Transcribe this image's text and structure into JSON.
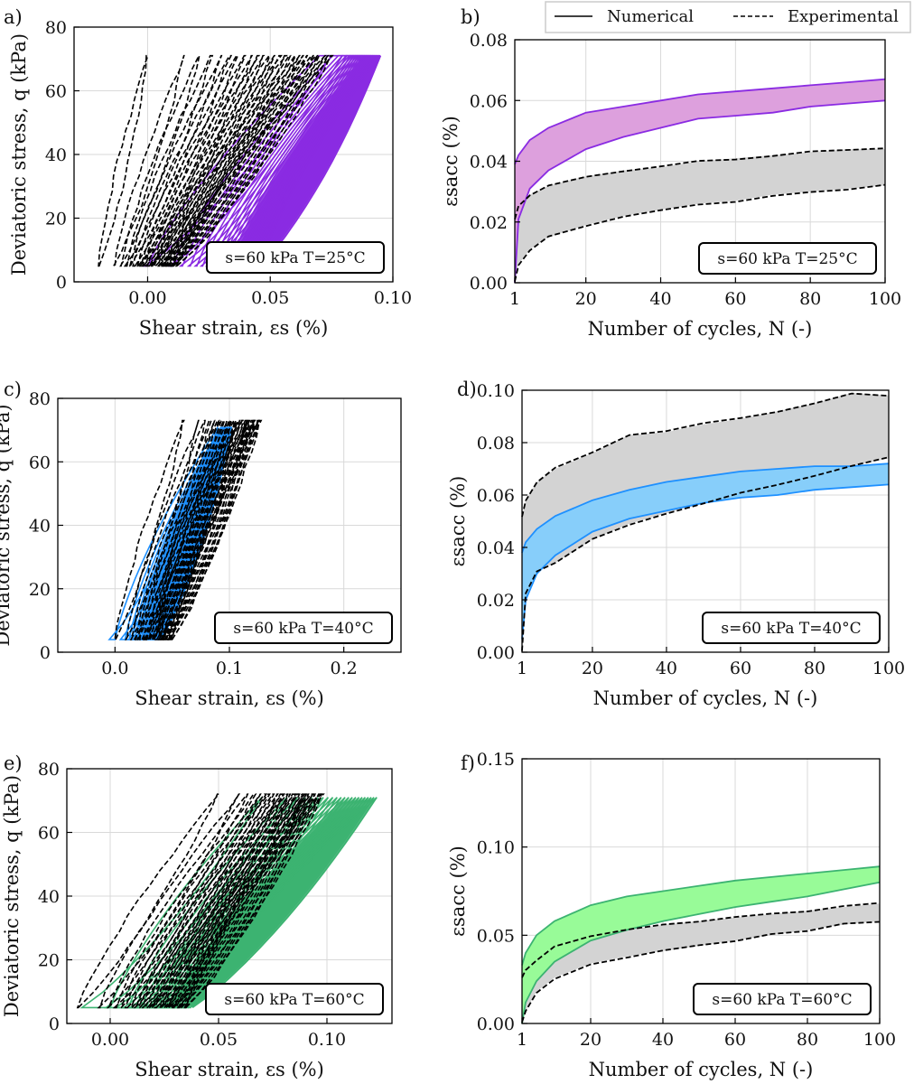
{
  "legend": {
    "numerical": "Numerical",
    "experimental": "Experimental"
  },
  "chart_data": [
    {
      "id": "a",
      "panel_label": "a)",
      "type": "line",
      "title": "",
      "xlabel": "Shear strain, εs (%)",
      "ylabel": "Deviatoric stress, q (kPa)",
      "xlim": [
        -0.03,
        0.1
      ],
      "ylim": [
        0,
        80
      ],
      "xticks": [
        0.0,
        0.05,
        0.1
      ],
      "xtick_labels": [
        "0.00",
        "0.05",
        "0.10"
      ],
      "yticks": [
        0,
        20,
        40,
        60,
        80
      ],
      "ytick_labels": [
        "0",
        "20",
        "40",
        "60",
        "80"
      ],
      "annotation": "s=60 kPa T=25°C",
      "color": "#8a2be2",
      "experimental_loops": {
        "q_range": [
          5,
          71
        ],
        "first_loop": {
          "load_x": [
            -0.02,
            0.0
          ],
          "unload_x": [
            -0.02,
            0.0
          ]
        },
        "last_loop": {
          "load_x": [
            0.012,
            0.075
          ],
          "unload_x": [
            0.012,
            0.075
          ]
        }
      },
      "numerical_loops": {
        "q_range": [
          5,
          71
        ],
        "first_loop": {
          "load_x": [
            -0.001,
            0.075
          ],
          "unload_x": [
            0.0,
            0.07
          ]
        },
        "last_loop": {
          "load_x": [
            0.046,
            0.095
          ],
          "unload_x": [
            0.046,
            0.095
          ]
        }
      }
    },
    {
      "id": "b",
      "panel_label": "b)",
      "type": "area",
      "title": "",
      "xlabel": "Number of cycles, N (-)",
      "ylabel": "εsacc (%)",
      "xlim": [
        1,
        100
      ],
      "ylim": [
        0,
        0.08
      ],
      "xticks": [
        1,
        20,
        40,
        60,
        80,
        100
      ],
      "xtick_labels": [
        "1",
        "20",
        "40",
        "60",
        "80",
        "100"
      ],
      "yticks": [
        0,
        0.02,
        0.04,
        0.06,
        0.08
      ],
      "ytick_labels": [
        "0.00",
        "0.02",
        "0.04",
        "0.06",
        "0.08"
      ],
      "annotation": "s=60 kPa T=25°C",
      "fill_color": "#dda0dd",
      "line_color": "#8a2be2",
      "x": [
        1,
        2,
        5,
        10,
        20,
        30,
        40,
        50,
        60,
        70,
        80,
        90,
        100
      ],
      "series": [
        {
          "name": "Numerical upper",
          "values": [
            0.039,
            0.042,
            0.047,
            0.051,
            0.056,
            0.058,
            0.06,
            0.062,
            0.063,
            0.064,
            0.065,
            0.066,
            0.067
          ]
        },
        {
          "name": "Numerical lower",
          "values": [
            0.0,
            0.021,
            0.031,
            0.037,
            0.044,
            0.048,
            0.051,
            0.054,
            0.055,
            0.056,
            0.058,
            0.059,
            0.06
          ]
        },
        {
          "name": "Experimental upper",
          "values": [
            0.021,
            0.025,
            0.029,
            0.032,
            0.035,
            0.037,
            0.038,
            0.04,
            0.041,
            0.042,
            0.043,
            0.044,
            0.044
          ]
        },
        {
          "name": "Experimental lower",
          "values": [
            0.0,
            0.006,
            0.011,
            0.015,
            0.019,
            0.022,
            0.024,
            0.026,
            0.027,
            0.029,
            0.03,
            0.031,
            0.032
          ]
        }
      ]
    },
    {
      "id": "c",
      "panel_label": "c)",
      "type": "line",
      "title": "",
      "xlabel": "Shear strain, εs (%)",
      "ylabel": "Deviatoric stress, q (kPa)",
      "xlim": [
        -0.05,
        0.25
      ],
      "ylim": [
        0,
        80
      ],
      "xticks": [
        0.0,
        0.1,
        0.2
      ],
      "xtick_labels": [
        "0.0",
        "0.1",
        "0.2"
      ],
      "yticks": [
        0,
        20,
        40,
        60,
        80
      ],
      "ytick_labels": [
        "0",
        "20",
        "40",
        "60",
        "80"
      ],
      "annotation": "s=60 kPa T=40°C",
      "color": "#1e90ff",
      "experimental_loops": {
        "q_range": [
          4,
          73
        ],
        "first_loop": {
          "load_x": [
            0.0,
            0.06
          ],
          "unload_x": [
            0.0,
            0.06
          ]
        },
        "last_loop": {
          "load_x": [
            0.05,
            0.127
          ],
          "unload_x": [
            0.05,
            0.127
          ]
        }
      },
      "numerical_loops": {
        "q_range": [
          4,
          71
        ],
        "first_loop": {
          "load_x": [
            -0.005,
            0.09
          ],
          "unload_x": [
            0.0,
            0.09
          ]
        },
        "last_loop": {
          "load_x": [
            0.04,
            0.102
          ],
          "unload_x": [
            0.04,
            0.102
          ]
        }
      }
    },
    {
      "id": "d",
      "panel_label": "d)",
      "type": "area",
      "title": "",
      "xlabel": "Number of cycles, N (-)",
      "ylabel": "εsacc (%)",
      "xlim": [
        1,
        100
      ],
      "ylim": [
        0,
        0.1
      ],
      "xticks": [
        1,
        20,
        40,
        60,
        80,
        100
      ],
      "xtick_labels": [
        "1",
        "20",
        "40",
        "60",
        "80",
        "100"
      ],
      "yticks": [
        0,
        0.02,
        0.04,
        0.06,
        0.08,
        0.1
      ],
      "ytick_labels": [
        "0.00",
        "0.02",
        "0.04",
        "0.06",
        "0.08",
        "0.10"
      ],
      "annotation": "s=60 kPa T=40°C",
      "fill_color": "#87cefa",
      "line_color": "#1e90ff",
      "x": [
        1,
        2,
        5,
        10,
        20,
        30,
        40,
        50,
        60,
        70,
        80,
        90,
        100
      ],
      "series": [
        {
          "name": "Numerical upper",
          "values": [
            0.038,
            0.042,
            0.047,
            0.052,
            0.058,
            0.062,
            0.065,
            0.067,
            0.069,
            0.07,
            0.071,
            0.071,
            0.072
          ]
        },
        {
          "name": "Numerical lower",
          "values": [
            0.005,
            0.02,
            0.03,
            0.037,
            0.046,
            0.051,
            0.054,
            0.057,
            0.059,
            0.06,
            0.062,
            0.063,
            0.064
          ]
        },
        {
          "name": "Experimental upper",
          "values": [
            0.052,
            0.058,
            0.065,
            0.07,
            0.076,
            0.083,
            0.084,
            0.087,
            0.089,
            0.092,
            0.095,
            0.099,
            0.098
          ]
        },
        {
          "name": "Experimental lower",
          "values": [
            0.0,
            0.022,
            0.031,
            0.034,
            0.043,
            0.049,
            0.053,
            0.057,
            0.061,
            0.064,
            0.067,
            0.071,
            0.074
          ]
        }
      ]
    },
    {
      "id": "e",
      "panel_label": "e)",
      "type": "line",
      "title": "",
      "xlabel": "Shear strain, εs (%)",
      "ylabel": "Deviatoric stress, q (kPa)",
      "xlim": [
        -0.02,
        0.13
      ],
      "ylim": [
        0,
        80
      ],
      "xticks": [
        0.0,
        0.05,
        0.1
      ],
      "xtick_labels": [
        "0.00",
        "0.05",
        "0.10"
      ],
      "yticks": [
        0,
        20,
        40,
        60,
        80
      ],
      "ytick_labels": [
        "0",
        "20",
        "40",
        "60",
        "80"
      ],
      "annotation": "s=60 kPa T=60°C",
      "color": "#3cb371",
      "experimental_loops": {
        "q_range": [
          5,
          72
        ],
        "first_loop": {
          "load_x": [
            -0.015,
            0.05
          ],
          "unload_x": [
            -0.015,
            0.05
          ]
        },
        "last_loop": {
          "load_x": [
            0.035,
            0.098
          ],
          "unload_x": [
            0.035,
            0.098
          ]
        }
      },
      "numerical_loops": {
        "q_range": [
          5,
          71
        ],
        "first_loop": {
          "load_x": [
            -0.013,
            0.07
          ],
          "unload_x": [
            0.0,
            0.07
          ]
        },
        "last_loop": {
          "load_x": [
            0.038,
            0.123
          ],
          "unload_x": [
            0.038,
            0.123
          ]
        }
      }
    },
    {
      "id": "f",
      "panel_label": "f)",
      "type": "area",
      "title": "",
      "xlabel": "Number of cycles, N (-)",
      "ylabel": "εsacc (%)",
      "xlim": [
        1,
        100
      ],
      "ylim": [
        0,
        0.15
      ],
      "xticks": [
        1,
        20,
        40,
        60,
        80,
        100
      ],
      "xtick_labels": [
        "1",
        "20",
        "40",
        "60",
        "80",
        "100"
      ],
      "yticks": [
        0,
        0.05,
        0.1,
        0.15
      ],
      "ytick_labels": [
        "0.00",
        "0.05",
        "0.10",
        "0.15"
      ],
      "annotation": "s=60 kPa T=60°C",
      "fill_color": "#98fb98",
      "line_color": "#3cb371",
      "x": [
        1,
        2,
        5,
        10,
        20,
        30,
        40,
        50,
        60,
        70,
        80,
        90,
        100
      ],
      "series": [
        {
          "name": "Numerical upper",
          "values": [
            0.033,
            0.04,
            0.05,
            0.058,
            0.067,
            0.072,
            0.075,
            0.078,
            0.081,
            0.083,
            0.085,
            0.087,
            0.089
          ]
        },
        {
          "name": "Numerical lower",
          "values": [
            0.0,
            0.012,
            0.024,
            0.035,
            0.047,
            0.053,
            0.058,
            0.062,
            0.066,
            0.069,
            0.072,
            0.076,
            0.08
          ]
        },
        {
          "name": "Experimental upper",
          "values": [
            0.026,
            0.03,
            0.036,
            0.043,
            0.049,
            0.053,
            0.056,
            0.058,
            0.06,
            0.062,
            0.064,
            0.066,
            0.068
          ]
        },
        {
          "name": "Experimental lower",
          "values": [
            0.0,
            0.007,
            0.018,
            0.026,
            0.034,
            0.038,
            0.041,
            0.044,
            0.047,
            0.05,
            0.053,
            0.056,
            0.058
          ]
        }
      ]
    }
  ]
}
